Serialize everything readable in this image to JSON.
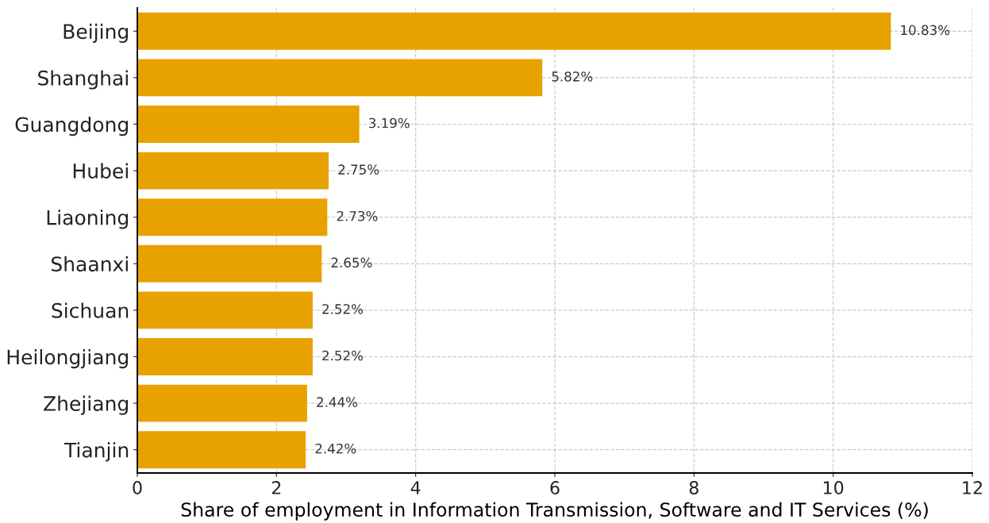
{
  "chart_data": {
    "type": "bar",
    "orientation": "horizontal",
    "xlabel": "Share of employment in Information Transmission, Software and IT Services (%)",
    "categories": [
      "Beijing",
      "Shanghai",
      "Guangdong",
      "Hubei",
      "Liaoning",
      "Shaanxi",
      "Sichuan",
      "Heilongjiang",
      "Zhejiang",
      "Tianjin"
    ],
    "values": [
      10.83,
      5.82,
      3.19,
      2.75,
      2.73,
      2.65,
      2.52,
      2.52,
      2.44,
      2.42
    ],
    "value_labels": [
      "10.83%",
      "5.82%",
      "3.19%",
      "2.75%",
      "2.73%",
      "2.65%",
      "2.52%",
      "2.52%",
      "2.44%",
      "2.42%"
    ],
    "color": "#e8a200",
    "xlim": [
      0,
      12
    ],
    "xticks": [
      0,
      2,
      4,
      6,
      8,
      10,
      12
    ],
    "grid": true,
    "legend": false
  }
}
